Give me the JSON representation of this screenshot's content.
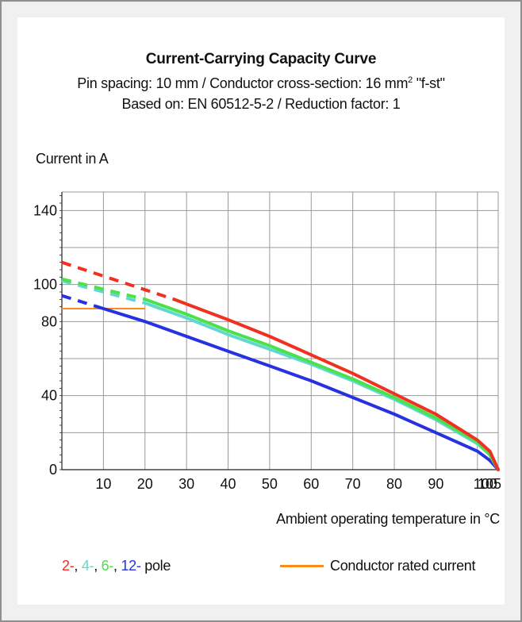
{
  "title": "Current-Carrying Capacity Curve",
  "subtitle_pre": "Pin spacing: 10 mm / Conductor cross-section: 16 mm",
  "subtitle_sup": "2",
  "subtitle_post": " \"f-st\"",
  "subtitle2": "Based on: EN 60512-5-2 / Reduction factor: 1",
  "colors": {
    "red": "#f03020",
    "cyan": "#5fd8d0",
    "green": "#4de04a",
    "blue": "#2632e0",
    "orange": "#ff8a1c",
    "grid": "#9a9a9a"
  },
  "chart_data": {
    "type": "line",
    "title": "Current-Carrying Capacity Curve",
    "xlabel": "Ambient operating temperature in °C",
    "ylabel": "Current in A",
    "xlim": [
      0,
      105
    ],
    "ylim": [
      0,
      150
    ],
    "x_ticks": [
      10,
      20,
      30,
      40,
      50,
      60,
      70,
      80,
      90,
      100,
      105
    ],
    "x_tick_labels": [
      "10",
      "20",
      "30",
      "40",
      "50",
      "60",
      "70",
      "80",
      "90",
      "100",
      "105"
    ],
    "y_ticks": [
      0,
      40,
      80,
      100,
      140
    ],
    "y_tick_labels": [
      "0",
      "40",
      "80",
      "100",
      "140"
    ],
    "grid": true,
    "legend": {
      "series_label_parts": [
        {
          "text": "2-",
          "color": "red"
        },
        {
          "text": ", ",
          "color": "black"
        },
        {
          "text": "4-",
          "color": "cyan"
        },
        {
          "text": ", ",
          "color": "black"
        },
        {
          "text": "6-",
          "color": "green"
        },
        {
          "text": ", ",
          "color": "black"
        },
        {
          "text": "12-",
          "color": "blue"
        },
        {
          "text": " pole",
          "color": "black"
        }
      ],
      "rated_label": "Conductor rated current"
    },
    "series": [
      {
        "name": "2-",
        "color": "red",
        "dashed": {
          "x": [
            0,
            27
          ],
          "y": [
            112,
            92
          ]
        },
        "solid": {
          "x": [
            27,
            40,
            50,
            60,
            70,
            80,
            90,
            100,
            103,
            105
          ],
          "y": [
            92,
            81,
            72,
            62,
            52,
            41,
            30,
            16,
            10,
            0
          ]
        }
      },
      {
        "name": "4-",
        "color": "cyan",
        "dashed": {
          "x": [
            0,
            20
          ],
          "y": [
            102,
            90
          ]
        },
        "solid": {
          "x": [
            20,
            30,
            40,
            50,
            60,
            70,
            80,
            90,
            100,
            103,
            105
          ],
          "y": [
            90,
            82,
            73,
            65,
            57,
            48,
            38,
            27,
            14,
            8,
            0
          ]
        }
      },
      {
        "name": "6-",
        "color": "green",
        "dashed": {
          "x": [
            0,
            20
          ],
          "y": [
            103,
            92
          ]
        },
        "solid": {
          "x": [
            20,
            30,
            40,
            50,
            60,
            70,
            80,
            90,
            100,
            103,
            105
          ],
          "y": [
            92,
            84,
            75,
            67,
            58,
            49,
            39,
            28,
            15,
            8,
            0
          ]
        }
      },
      {
        "name": "12-",
        "color": "blue",
        "dashed": {
          "x": [
            0,
            10
          ],
          "y": [
            94,
            87
          ]
        },
        "solid": {
          "x": [
            10,
            20,
            30,
            40,
            50,
            60,
            70,
            80,
            90,
            100,
            103,
            105
          ],
          "y": [
            87,
            80,
            72,
            64,
            56,
            48,
            39,
            30,
            20,
            10,
            5,
            0
          ]
        }
      }
    ],
    "rated_current": {
      "name": "Conductor rated current",
      "color": "orange",
      "x": [
        0,
        20
      ],
      "y": [
        87,
        87
      ]
    }
  }
}
